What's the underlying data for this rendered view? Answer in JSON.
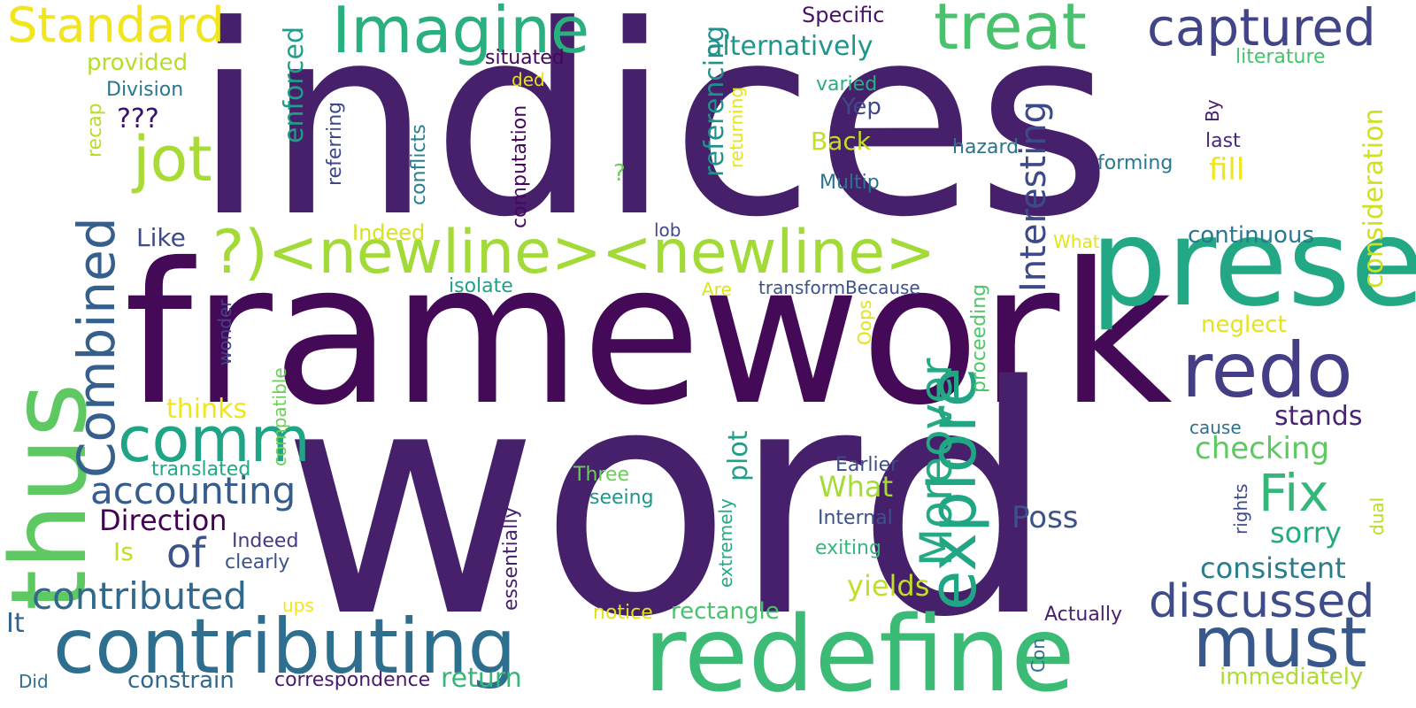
{
  "words": [
    {
      "text": "indices",
      "color": "#46206a"
    },
    {
      "text": "framework",
      "color": "#440a58"
    },
    {
      "text": "word",
      "color": "#46206a"
    },
    {
      "text": "redefine",
      "color": "#3bbb75"
    },
    {
      "text": "contributing",
      "color": "#2e6e8e"
    },
    {
      "text": "presence",
      "color": "#22a884"
    },
    {
      "text": "thus",
      "color": "#5ec962"
    },
    {
      "text": "treat",
      "color": "#4ac16d"
    },
    {
      "text": "Imagine",
      "color": "#2ab07f"
    },
    {
      "text": "captured",
      "color": "#414487"
    },
    {
      "text": "redo",
      "color": "#433e85"
    },
    {
      "text": "?)<newline><newline>",
      "color": "#a2da37"
    },
    {
      "text": "Standard",
      "color": "#f1e51d"
    },
    {
      "text": "jot",
      "color": "#a8db34"
    },
    {
      "text": "comm",
      "color": "#20a486"
    },
    {
      "text": "Combined",
      "color": "#355f8d"
    },
    {
      "text": "explore",
      "color": "#21a685"
    },
    {
      "text": "Moreover",
      "color": "#23a983"
    },
    {
      "text": "Fix",
      "color": "#35b779"
    },
    {
      "text": "must",
      "color": "#38588c"
    },
    {
      "text": "discussed",
      "color": "#3e4c8a"
    },
    {
      "text": "Interesting",
      "color": "#3e4989"
    },
    {
      "text": "accounting",
      "color": "#365c8d"
    },
    {
      "text": "contributed",
      "color": "#31688e"
    },
    {
      "text": "of",
      "color": "#3b528b"
    },
    {
      "text": "Direction",
      "color": "#440154"
    },
    {
      "text": "alternatively",
      "color": "#1f968b"
    },
    {
      "text": "consideration",
      "color": "#d0e11c"
    },
    {
      "text": "continuous",
      "color": "#2a788e"
    },
    {
      "text": "stands",
      "color": "#482475"
    },
    {
      "text": "checking",
      "color": "#5ec962"
    },
    {
      "text": "sorry",
      "color": "#25ab82"
    },
    {
      "text": "consistent",
      "color": "#277f8e"
    },
    {
      "text": "yields",
      "color": "#c0df25"
    },
    {
      "text": "rectangle",
      "color": "#4ac16d"
    },
    {
      "text": "immediately",
      "color": "#addc30"
    },
    {
      "text": "Poss",
      "color": "#3b528b"
    },
    {
      "text": "What",
      "color": "#a5db36"
    },
    {
      "text": "plot",
      "color": "#1f9e89"
    },
    {
      "text": "referencing",
      "color": "#21918c"
    },
    {
      "text": "fill",
      "color": "#f1e51d"
    },
    {
      "text": "neglect",
      "color": "#e5e419"
    },
    {
      "text": "enforced",
      "color": "#1f9e89"
    },
    {
      "text": "provided",
      "color": "#b5de2b"
    },
    {
      "text": "Division",
      "color": "#2a768e"
    },
    {
      "text": "recap",
      "color": "#b8de29"
    },
    {
      "text": "???",
      "color": "#3b0f70"
    },
    {
      "text": "Like",
      "color": "#3e4a89"
    },
    {
      "text": "thinks",
      "color": "#f1e51d"
    },
    {
      "text": "translated",
      "color": "#22a884"
    },
    {
      "text": "compatible",
      "color": "#6ccd5a"
    },
    {
      "text": "Is",
      "color": "#c2df23"
    },
    {
      "text": "Indeed",
      "color": "#443b84"
    },
    {
      "text": "clearly",
      "color": "#3b528b"
    },
    {
      "text": "It",
      "color": "#33638d"
    },
    {
      "text": "constrain",
      "color": "#31688e"
    },
    {
      "text": "correspondence",
      "color": "#481a6c"
    },
    {
      "text": "return",
      "color": "#35b779"
    },
    {
      "text": "Did",
      "color": "#2d708e"
    },
    {
      "text": "ups",
      "color": "#f1e51d"
    },
    {
      "text": "notice",
      "color": "#dde318"
    },
    {
      "text": "Actually",
      "color": "#482173"
    },
    {
      "text": "Con",
      "color": "#2c728e"
    },
    {
      "text": "Specific",
      "color": "#481467"
    },
    {
      "text": "situated",
      "color": "#46075a"
    },
    {
      "text": "ded",
      "color": "#e5e419"
    },
    {
      "text": "literature",
      "color": "#4ac16d"
    },
    {
      "text": "varied",
      "color": "#29af7f"
    },
    {
      "text": "Yep",
      "color": "#3e4989"
    },
    {
      "text": "Back",
      "color": "#c2df23"
    },
    {
      "text": "hazard",
      "color": "#2c728e"
    },
    {
      "text": "last",
      "color": "#482979"
    },
    {
      "text": "forming",
      "color": "#2a788e"
    },
    {
      "text": "Multip",
      "color": "#2c728e"
    },
    {
      "text": "By",
      "color": "#481a6c"
    },
    {
      "text": "What",
      "color": "#e5e419"
    },
    {
      "text": "?",
      "color": "#6ccd5a"
    },
    {
      "text": "lob",
      "color": "#3f4788"
    },
    {
      "text": "Indeed",
      "color": "#d8e219"
    },
    {
      "text": "isolate",
      "color": "#1fa088"
    },
    {
      "text": "Are",
      "color": "#dde318"
    },
    {
      "text": "transformBecause",
      "color": "#3b528b"
    },
    {
      "text": "Oops",
      "color": "#e2e418"
    },
    {
      "text": "proceeding",
      "color": "#52c569"
    },
    {
      "text": "wonder",
      "color": "#414487"
    },
    {
      "text": "returning",
      "color": "#e7e419"
    },
    {
      "text": "computation",
      "color": "#46085c"
    },
    {
      "text": "conflicts",
      "color": "#277f8e"
    },
    {
      "text": "referring",
      "color": "#3e4989"
    },
    {
      "text": "cause",
      "color": "#2c728e"
    },
    {
      "text": "Earlier",
      "color": "#3e4a89"
    },
    {
      "text": "Internal",
      "color": "#3b528b"
    },
    {
      "text": "exiting",
      "color": "#35b779"
    },
    {
      "text": "Three",
      "color": "#6ccd5a"
    },
    {
      "text": "seeing",
      "color": "#1f968b"
    },
    {
      "text": "essentially",
      "color": "#481f70"
    },
    {
      "text": "extremely",
      "color": "#22a884"
    },
    {
      "text": "rights",
      "color": "#3e4a89"
    },
    {
      "text": "dual",
      "color": "#b5de2b"
    }
  ]
}
